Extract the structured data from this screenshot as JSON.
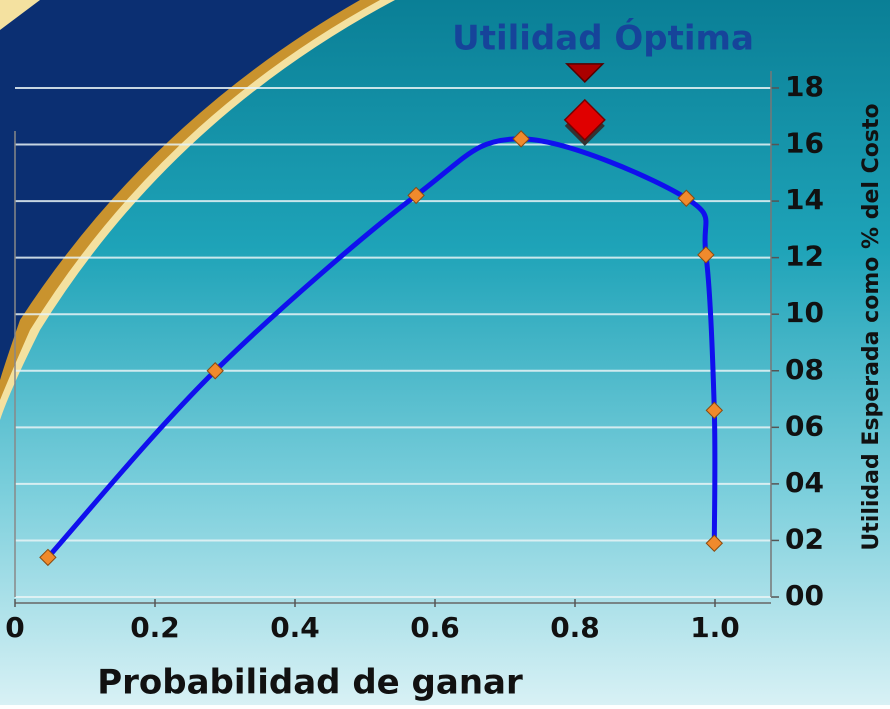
{
  "chart_data": {
    "type": "line",
    "title": "Utilidad Óptima",
    "x_label": "Probabilidad de ganar",
    "y_label": "Utilidad Esperada como % del Costo",
    "x": [
      0.047,
      0.286,
      0.573,
      0.723,
      0.959,
      0.987,
      0.999,
      0.999
    ],
    "values": [
      1.4,
      8.0,
      14.2,
      16.2,
      14.1,
      12.1,
      6.6,
      1.9
    ],
    "color": "#1010ee",
    "marker_color": "#f08a2c",
    "optimum": {
      "x": 0.814,
      "y": 16.8,
      "color": "#e00000"
    },
    "xlim": [
      0,
      1.08
    ],
    "xticks": [
      0,
      {
        "value": 0.2,
        "label": "0.2"
      },
      {
        "value": 0.4,
        "label": "0.4"
      },
      {
        "value": 0.6,
        "label": "0.6"
      },
      {
        "value": 0.8,
        "label": "0.8"
      },
      {
        "value": 1.0,
        "label": "1.0"
      }
    ],
    "ylim": [
      0,
      18.6
    ],
    "yticks": [
      {
        "value": 0,
        "label": "00"
      },
      {
        "value": 2,
        "label": "02"
      },
      {
        "value": 4,
        "label": "04"
      },
      {
        "value": 6,
        "label": "06"
      },
      {
        "value": 8,
        "label": "08"
      },
      10,
      12,
      14,
      16,
      18
    ],
    "grid": true
  }
}
